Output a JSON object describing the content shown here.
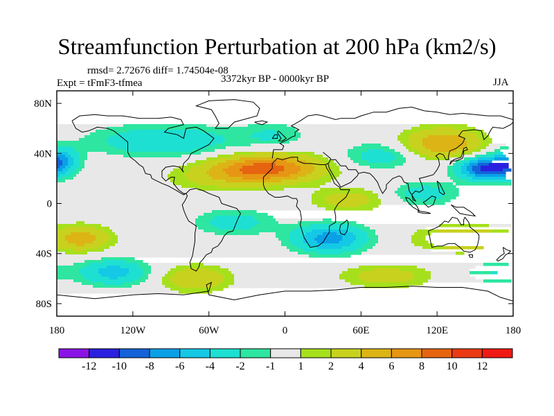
{
  "title": "Streamfunction Perturbation at 200 hPa (km2/s)",
  "stats": "rmsd= 2.72676 diff= 1.74504e-08",
  "experiment": "Expt = tFmF3-tfmea",
  "period": "3372kyr BP - 0000kyr BP",
  "season": "JJA",
  "chart_data": {
    "type": "heatmap",
    "title": "Streamfunction Perturbation at 200 hPa (km2/s)",
    "projection": "cylindrical equidistant",
    "xlim": [
      -180,
      180
    ],
    "ylim": [
      -90,
      90
    ],
    "x_ticks": [
      {
        "value": -180,
        "label": "180"
      },
      {
        "value": -120,
        "label": "120W"
      },
      {
        "value": -60,
        "label": "60W"
      },
      {
        "value": 0,
        "label": "0"
      },
      {
        "value": 60,
        "label": "60E"
      },
      {
        "value": 120,
        "label": "120E"
      },
      {
        "value": 180,
        "label": "180"
      }
    ],
    "y_ticks": [
      {
        "value": 80,
        "label": "80N"
      },
      {
        "value": 40,
        "label": "40N"
      },
      {
        "value": 0,
        "label": "0"
      },
      {
        "value": -40,
        "label": "40S"
      },
      {
        "value": -80,
        "label": "80S"
      }
    ],
    "colorbar": {
      "levels": [
        -12,
        -10,
        -8,
        -6,
        -4,
        -2,
        -1,
        1,
        2,
        4,
        6,
        8,
        10,
        12
      ],
      "labels": [
        "-12",
        "-10",
        "-8",
        "-6",
        "-4",
        "-2",
        "-1",
        "1",
        "2",
        "4",
        "6",
        "8",
        "10",
        "12"
      ],
      "colors": [
        "#8a14e6",
        "#2a20e0",
        "#1462d8",
        "#0aa0e6",
        "#14c8e6",
        "#1ee0d2",
        "#2ee6a0",
        "#e8e8e8",
        "#a6e01c",
        "#c8d21e",
        "#dcb416",
        "#e69614",
        "#e66410",
        "#ea3a14",
        "#f01a14"
      ]
    },
    "field_centers": [
      {
        "lon": 160,
        "lat": 28,
        "value": -11,
        "wlon": 22,
        "wlat": 9
      },
      {
        "lon": -15,
        "lat": 28,
        "value": 9,
        "wlon": 42,
        "wlat": 11
      },
      {
        "lon": 35,
        "lat": -28,
        "value": -7,
        "wlon": 28,
        "wlat": 11
      },
      {
        "lon": 125,
        "lat": 48,
        "value": 6,
        "wlon": 30,
        "wlat": 12
      },
      {
        "lon": -178,
        "lat": 35,
        "value": -6,
        "wlon": 14,
        "wlat": 10
      },
      {
        "lon": -95,
        "lat": 50,
        "value": -4,
        "wlon": 55,
        "wlat": 12
      },
      {
        "lon": -55,
        "lat": 20,
        "value": 2,
        "wlon": 40,
        "wlat": 10
      },
      {
        "lon": 50,
        "lat": 3,
        "value": 3,
        "wlon": 28,
        "wlat": 9
      },
      {
        "lon": 75,
        "lat": 38,
        "value": -3,
        "wlon": 28,
        "wlat": 10
      },
      {
        "lon": -160,
        "lat": -28,
        "value": 5,
        "wlon": 22,
        "wlat": 10
      },
      {
        "lon": -135,
        "lat": -55,
        "value": -5,
        "wlon": 26,
        "wlat": 10
      },
      {
        "lon": -70,
        "lat": -60,
        "value": 4,
        "wlon": 26,
        "wlat": 10
      },
      {
        "lon": 140,
        "lat": -28,
        "value": 4,
        "wlon": 35,
        "wlat": 10
      },
      {
        "lon": 80,
        "lat": -58,
        "value": 3,
        "wlon": 35,
        "wlat": 9
      },
      {
        "lon": -40,
        "lat": -15,
        "value": -3,
        "wlon": 30,
        "wlat": 10
      },
      {
        "lon": 110,
        "lat": 8,
        "value": -3,
        "wlon": 25,
        "wlat": 9
      },
      {
        "lon": -10,
        "lat": 55,
        "value": -2,
        "wlon": 25,
        "wlat": 10
      },
      {
        "lon": 165,
        "lat": -55,
        "value": -2,
        "wlon": 25,
        "wlat": 9
      }
    ]
  }
}
